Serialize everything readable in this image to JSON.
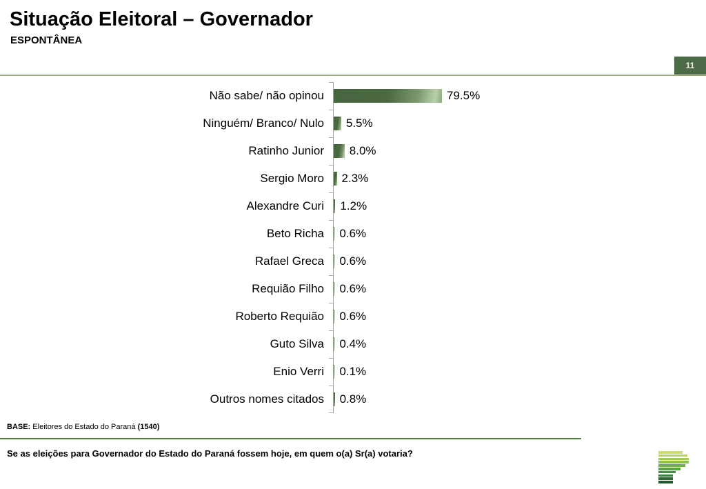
{
  "header": {
    "title": "Situação Eleitoral – Governador",
    "subtitle": "ESPONTÂNEA",
    "page_number": "11"
  },
  "chart_data": {
    "type": "bar",
    "orientation": "horizontal",
    "title": "Situação Eleitoral – Governador (Espontânea)",
    "xlabel": "",
    "ylabel": "",
    "xlim": [
      0,
      100
    ],
    "grid": false,
    "legend": "none",
    "categories": [
      "Não sabe/ não opinou",
      "Ninguém/ Branco/ Nulo",
      "Ratinho Junior",
      "Sergio Moro",
      "Alexandre Curi",
      "Beto Richa",
      "Rafael Greca",
      "Requião Filho",
      "Roberto Requião",
      "Guto Silva",
      "Enio Verri",
      "Outros nomes citados"
    ],
    "values": [
      79.5,
      5.5,
      8.0,
      2.3,
      1.2,
      0.6,
      0.6,
      0.6,
      0.6,
      0.4,
      0.1,
      0.8
    ],
    "value_labels": [
      "79.5%",
      "5.5%",
      "8.0%",
      "2.3%",
      "1.2%",
      "0.6%",
      "0.6%",
      "0.6%",
      "0.6%",
      "0.4%",
      "0.1%",
      "0.8%"
    ],
    "bar_color_dark": "#47663f",
    "bar_color_light": "#b9d0aa",
    "axis_color": "#a6a6a6"
  },
  "footer": {
    "base_label": "BASE:",
    "base_text": " Eleitores do Estado do Paraná ",
    "base_count": "(1540)",
    "question": "Se as eleições para Governador do Estado do Paraná fossem hoje, em quem o(a) Sr(a) votaria?"
  },
  "branding": {
    "logo_name": "parana-pesquisas-logo",
    "logo_stripe_colors": [
      "#cbdd6e",
      "#b8d35c",
      "#a3cb50",
      "#8cc247",
      "#6fb345",
      "#58a347",
      "#459043",
      "#347c3c",
      "#2a6a35",
      "#21592d"
    ]
  },
  "colors": {
    "badge_bg": "#4d6a49",
    "badge_text": "#f2f0e2",
    "header_rule": "#829c67",
    "base_rule": "#4e7e3e"
  }
}
